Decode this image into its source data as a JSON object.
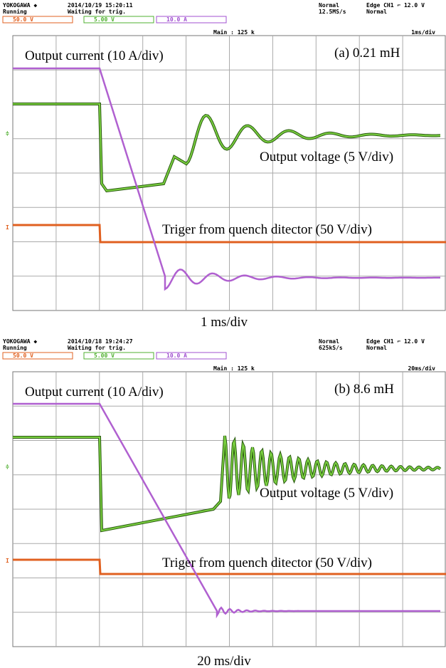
{
  "panels": [
    {
      "brand": "YOKOGAWA ◆",
      "timestamp": "2014/10/19 15:20:11",
      "status": "Running",
      "trigger_state": "Waiting for trig.",
      "mode": "Normal",
      "sample_rate": "12.5MS/s",
      "trigger": "Edge CH1 ⌐ 12.0 V",
      "trigger_mode": "Normal",
      "channels": [
        "50.0 V",
        "5.00 V",
        "10.0 A"
      ],
      "main": "Main : 125 k",
      "timebase": "1ms/div",
      "current_label": "Output current (10 A/div)",
      "panel_label": "(a) 0.21 mH",
      "voltage_label": "Output voltage (5 V/div)",
      "trigger_label": "Triger from quench ditector (50 V/div)",
      "caption": "1 ms/div"
    },
    {
      "brand": "YOKOGAWA ◆",
      "timestamp": "2014/10/18 19:24:27",
      "status": "Running",
      "trigger_state": "Waiting for trig.",
      "mode": "Normal",
      "sample_rate": "625kS/s",
      "trigger": "Edge CH1 ⌐ 12.0 V",
      "trigger_mode": "Normal",
      "channels": [
        "50.0 V",
        "5.00 V",
        "10.0 A"
      ],
      "main": "Main : 125 k",
      "timebase": "20ms/div",
      "current_label": "Output current (10 A/div)",
      "panel_label": "(b) 8.6 mH",
      "voltage_label": "Output voltage (5 V/div)",
      "trigger_label": "Triger from quench ditector (50 V/div)",
      "caption": "20 ms/div"
    }
  ]
}
